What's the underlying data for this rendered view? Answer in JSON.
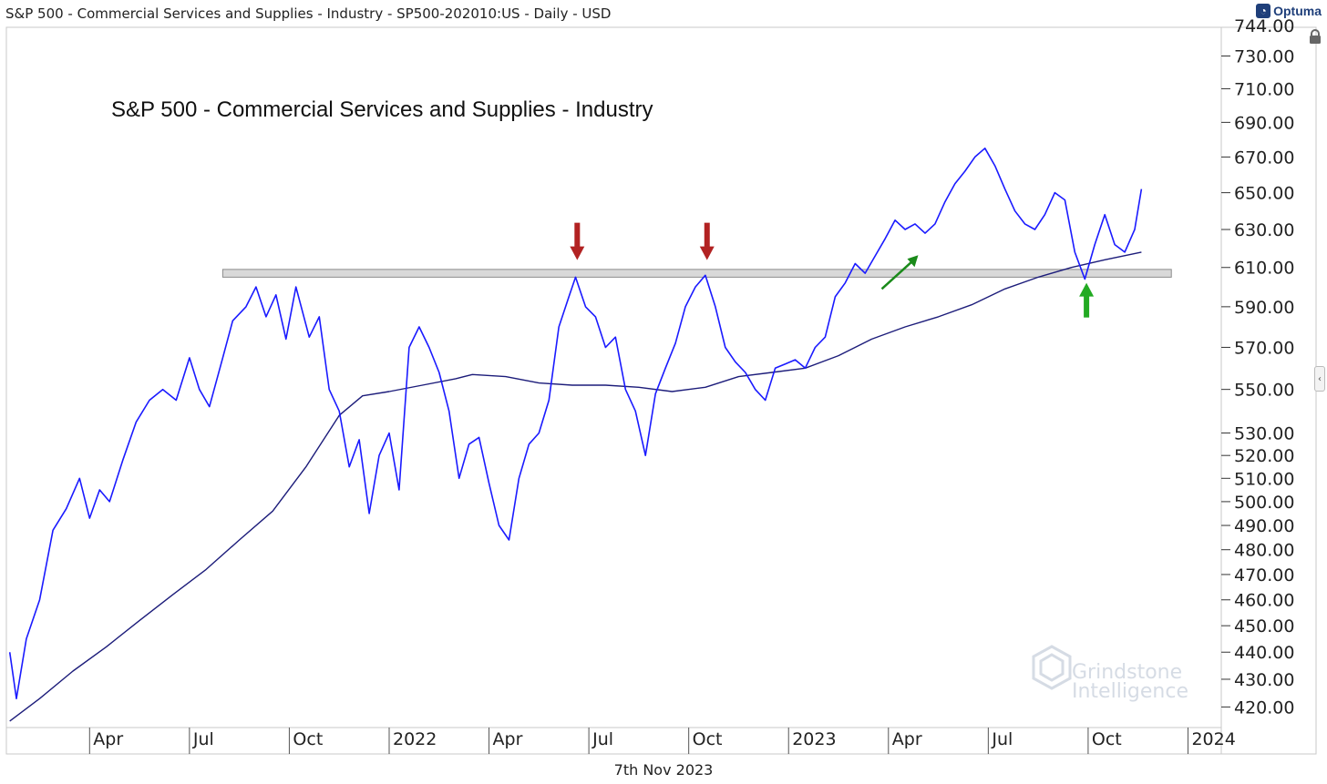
{
  "header": {
    "title": "S&P 500 - Commercial Services and Supplies - Industry - SP500-202010:US - Daily - USD"
  },
  "brand": {
    "name": "Optuma"
  },
  "footer": {
    "date": "7th Nov 2023"
  },
  "watermark": {
    "line1": "Grindstone",
    "line2": "Intelligence"
  },
  "chart_data": {
    "type": "line",
    "title": "S&P 500 - Commercial Services and Supplies - Industry",
    "y_scale": "log",
    "ylim": [
      414,
      748
    ],
    "y_ticks": [
      730,
      710,
      690,
      670,
      650,
      630,
      610,
      590,
      570,
      550,
      530,
      520,
      510,
      500,
      490,
      480,
      470,
      460,
      450,
      440,
      430,
      420
    ],
    "y_tick_labels": [
      "730.00",
      "710.00",
      "690.00",
      "670.00",
      "650.00",
      "630.00",
      "610.00",
      "590.00",
      "570.00",
      "550.00",
      "530.00",
      "520.00",
      "510.00",
      "500.00",
      "490.00",
      "480.00",
      "470.00",
      "460.00",
      "450.00",
      "440.00",
      "430.00",
      "420.00"
    ],
    "y_partial_label": "744.00",
    "xlim": [
      0,
      34
    ],
    "x_ticks": [
      {
        "label": "Apr",
        "t": 1
      },
      {
        "label": "Jul",
        "t": 4
      },
      {
        "label": "Oct",
        "t": 7
      },
      {
        "label": "2022",
        "t": 10
      },
      {
        "label": "Apr",
        "t": 13
      },
      {
        "label": "Jul",
        "t": 16
      },
      {
        "label": "Oct",
        "t": 19
      },
      {
        "label": "2023",
        "t": 22
      },
      {
        "label": "Apr",
        "t": 25
      },
      {
        "label": "Jul",
        "t": 28
      },
      {
        "label": "Oct",
        "t": 31
      },
      {
        "label": "2024",
        "t": 34
      }
    ],
    "series": [
      {
        "name": "Price",
        "color": "#1a1aff",
        "points": [
          [
            -1.4,
            440
          ],
          [
            -1.2,
            423
          ],
          [
            -0.9,
            445
          ],
          [
            -0.5,
            460
          ],
          [
            -0.1,
            488
          ],
          [
            0.3,
            497
          ],
          [
            0.7,
            510
          ],
          [
            1.0,
            493
          ],
          [
            1.3,
            505
          ],
          [
            1.6,
            500
          ],
          [
            2.0,
            518
          ],
          [
            2.4,
            535
          ],
          [
            2.8,
            545
          ],
          [
            3.2,
            550
          ],
          [
            3.6,
            545
          ],
          [
            4.0,
            565
          ],
          [
            4.3,
            550
          ],
          [
            4.6,
            542
          ],
          [
            5.0,
            565
          ],
          [
            5.3,
            583
          ],
          [
            5.7,
            590
          ],
          [
            6.0,
            600
          ],
          [
            6.3,
            585
          ],
          [
            6.6,
            596
          ],
          [
            6.9,
            574
          ],
          [
            7.2,
            600
          ],
          [
            7.6,
            575
          ],
          [
            7.9,
            585
          ],
          [
            8.2,
            550
          ],
          [
            8.5,
            540
          ],
          [
            8.8,
            515
          ],
          [
            9.1,
            527
          ],
          [
            9.4,
            495
          ],
          [
            9.7,
            520
          ],
          [
            10.0,
            530
          ],
          [
            10.3,
            505
          ],
          [
            10.6,
            570
          ],
          [
            10.9,
            580
          ],
          [
            11.2,
            570
          ],
          [
            11.5,
            558
          ],
          [
            11.8,
            540
          ],
          [
            12.1,
            510
          ],
          [
            12.4,
            525
          ],
          [
            12.7,
            528
          ],
          [
            13.0,
            508
          ],
          [
            13.3,
            490
          ],
          [
            13.6,
            484
          ],
          [
            13.9,
            510
          ],
          [
            14.2,
            525
          ],
          [
            14.5,
            530
          ],
          [
            14.8,
            545
          ],
          [
            15.1,
            580
          ],
          [
            15.4,
            595
          ],
          [
            15.6,
            605
          ],
          [
            15.9,
            590
          ],
          [
            16.2,
            585
          ],
          [
            16.5,
            570
          ],
          [
            16.8,
            575
          ],
          [
            17.1,
            550
          ],
          [
            17.4,
            540
          ],
          [
            17.7,
            520
          ],
          [
            18.0,
            548
          ],
          [
            18.3,
            560
          ],
          [
            18.6,
            572
          ],
          [
            18.9,
            590
          ],
          [
            19.2,
            600
          ],
          [
            19.5,
            606
          ],
          [
            19.8,
            590
          ],
          [
            20.1,
            570
          ],
          [
            20.4,
            563
          ],
          [
            20.7,
            558
          ],
          [
            21.0,
            550
          ],
          [
            21.3,
            545
          ],
          [
            21.6,
            560
          ],
          [
            21.9,
            562
          ],
          [
            22.2,
            564
          ],
          [
            22.5,
            560
          ],
          [
            22.8,
            570
          ],
          [
            23.1,
            575
          ],
          [
            23.4,
            595
          ],
          [
            23.7,
            602
          ],
          [
            24.0,
            612
          ],
          [
            24.3,
            607
          ],
          [
            24.6,
            616
          ],
          [
            24.9,
            625
          ],
          [
            25.2,
            635
          ],
          [
            25.5,
            630
          ],
          [
            25.8,
            633
          ],
          [
            26.1,
            628
          ],
          [
            26.4,
            633
          ],
          [
            26.7,
            645
          ],
          [
            27.0,
            655
          ],
          [
            27.3,
            662
          ],
          [
            27.6,
            670
          ],
          [
            27.9,
            675
          ],
          [
            28.2,
            665
          ],
          [
            28.5,
            652
          ],
          [
            28.8,
            640
          ],
          [
            29.1,
            633
          ],
          [
            29.4,
            630
          ],
          [
            29.7,
            638
          ],
          [
            30.0,
            650
          ],
          [
            30.3,
            646
          ],
          [
            30.6,
            618
          ],
          [
            30.9,
            604
          ],
          [
            31.2,
            622
          ],
          [
            31.5,
            638
          ],
          [
            31.8,
            622
          ],
          [
            32.1,
            618
          ],
          [
            32.4,
            630
          ],
          [
            32.6,
            652
          ]
        ]
      },
      {
        "name": "Moving Average",
        "color": "#1c1c7a",
        "points": [
          [
            -1.4,
            415
          ],
          [
            -0.5,
            423
          ],
          [
            0.5,
            433
          ],
          [
            1.5,
            442
          ],
          [
            2.5,
            452
          ],
          [
            3.5,
            462
          ],
          [
            4.5,
            472
          ],
          [
            5.5,
            484
          ],
          [
            6.5,
            496
          ],
          [
            7.5,
            515
          ],
          [
            8.5,
            538
          ],
          [
            9.2,
            547
          ],
          [
            10.0,
            549
          ],
          [
            11.0,
            552
          ],
          [
            12.0,
            555
          ],
          [
            12.5,
            557
          ],
          [
            13.5,
            556
          ],
          [
            14.5,
            553
          ],
          [
            15.5,
            552
          ],
          [
            16.5,
            552
          ],
          [
            17.5,
            551
          ],
          [
            18.5,
            549
          ],
          [
            19.5,
            551
          ],
          [
            20.5,
            556
          ],
          [
            21.5,
            558
          ],
          [
            22.5,
            560
          ],
          [
            23.5,
            566
          ],
          [
            24.5,
            574
          ],
          [
            25.5,
            580
          ],
          [
            26.5,
            585
          ],
          [
            27.5,
            591
          ],
          [
            28.5,
            599
          ],
          [
            29.5,
            605
          ],
          [
            30.5,
            610
          ],
          [
            31.5,
            614
          ],
          [
            32.6,
            618
          ]
        ]
      }
    ],
    "resistance_zone": {
      "t_start": 5.0,
      "t_end": 33.5,
      "y_low": 605,
      "y_high": 609
    },
    "annotations": [
      {
        "type": "arrow-down",
        "label": "red-arrow-1",
        "color": "#b22222",
        "t": 15.65,
        "y": 611
      },
      {
        "type": "arrow-down",
        "label": "red-arrow-2",
        "color": "#b22222",
        "t": 19.55,
        "y": 611
      },
      {
        "type": "arrow-up-right",
        "label": "green-arrow-diagonal",
        "color": "#1a8a1a",
        "t": 24.8,
        "y": 599
      },
      {
        "type": "arrow-up",
        "label": "green-arrow-vertical",
        "color": "#22aa22",
        "t": 30.95,
        "y": 603
      }
    ]
  }
}
